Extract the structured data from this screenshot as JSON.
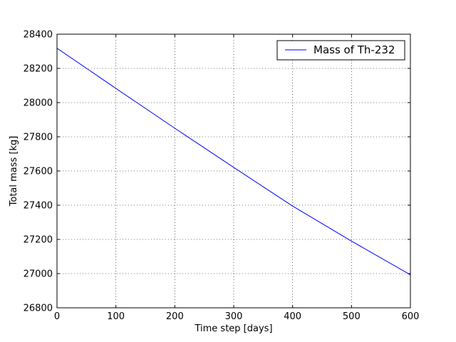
{
  "chart_data": {
    "type": "line",
    "title": "",
    "xlabel": "Time step [days]",
    "ylabel": "Total mass [kg]",
    "xlim": [
      0,
      600
    ],
    "ylim": [
      26800,
      28400
    ],
    "xticks": [
      0,
      100,
      200,
      300,
      400,
      500,
      600
    ],
    "yticks": [
      26800,
      27000,
      27200,
      27400,
      27600,
      27800,
      28000,
      28200,
      28400
    ],
    "x_tick_labels": [
      "0",
      "100",
      "200",
      "300",
      "400",
      "500",
      "600"
    ],
    "y_tick_labels": [
      "26800",
      "27000",
      "27200",
      "27400",
      "27600",
      "27800",
      "28000",
      "28200",
      "28400"
    ],
    "grid": true,
    "legend_position": "top-right",
    "series": [
      {
        "name": "Mass of Th-232",
        "color": "#0000ff",
        "x": [
          0,
          100,
          200,
          300,
          400,
          500,
          600
        ],
        "y": [
          28318,
          28083,
          27850,
          27621,
          27395,
          27190,
          26993
        ]
      }
    ]
  }
}
